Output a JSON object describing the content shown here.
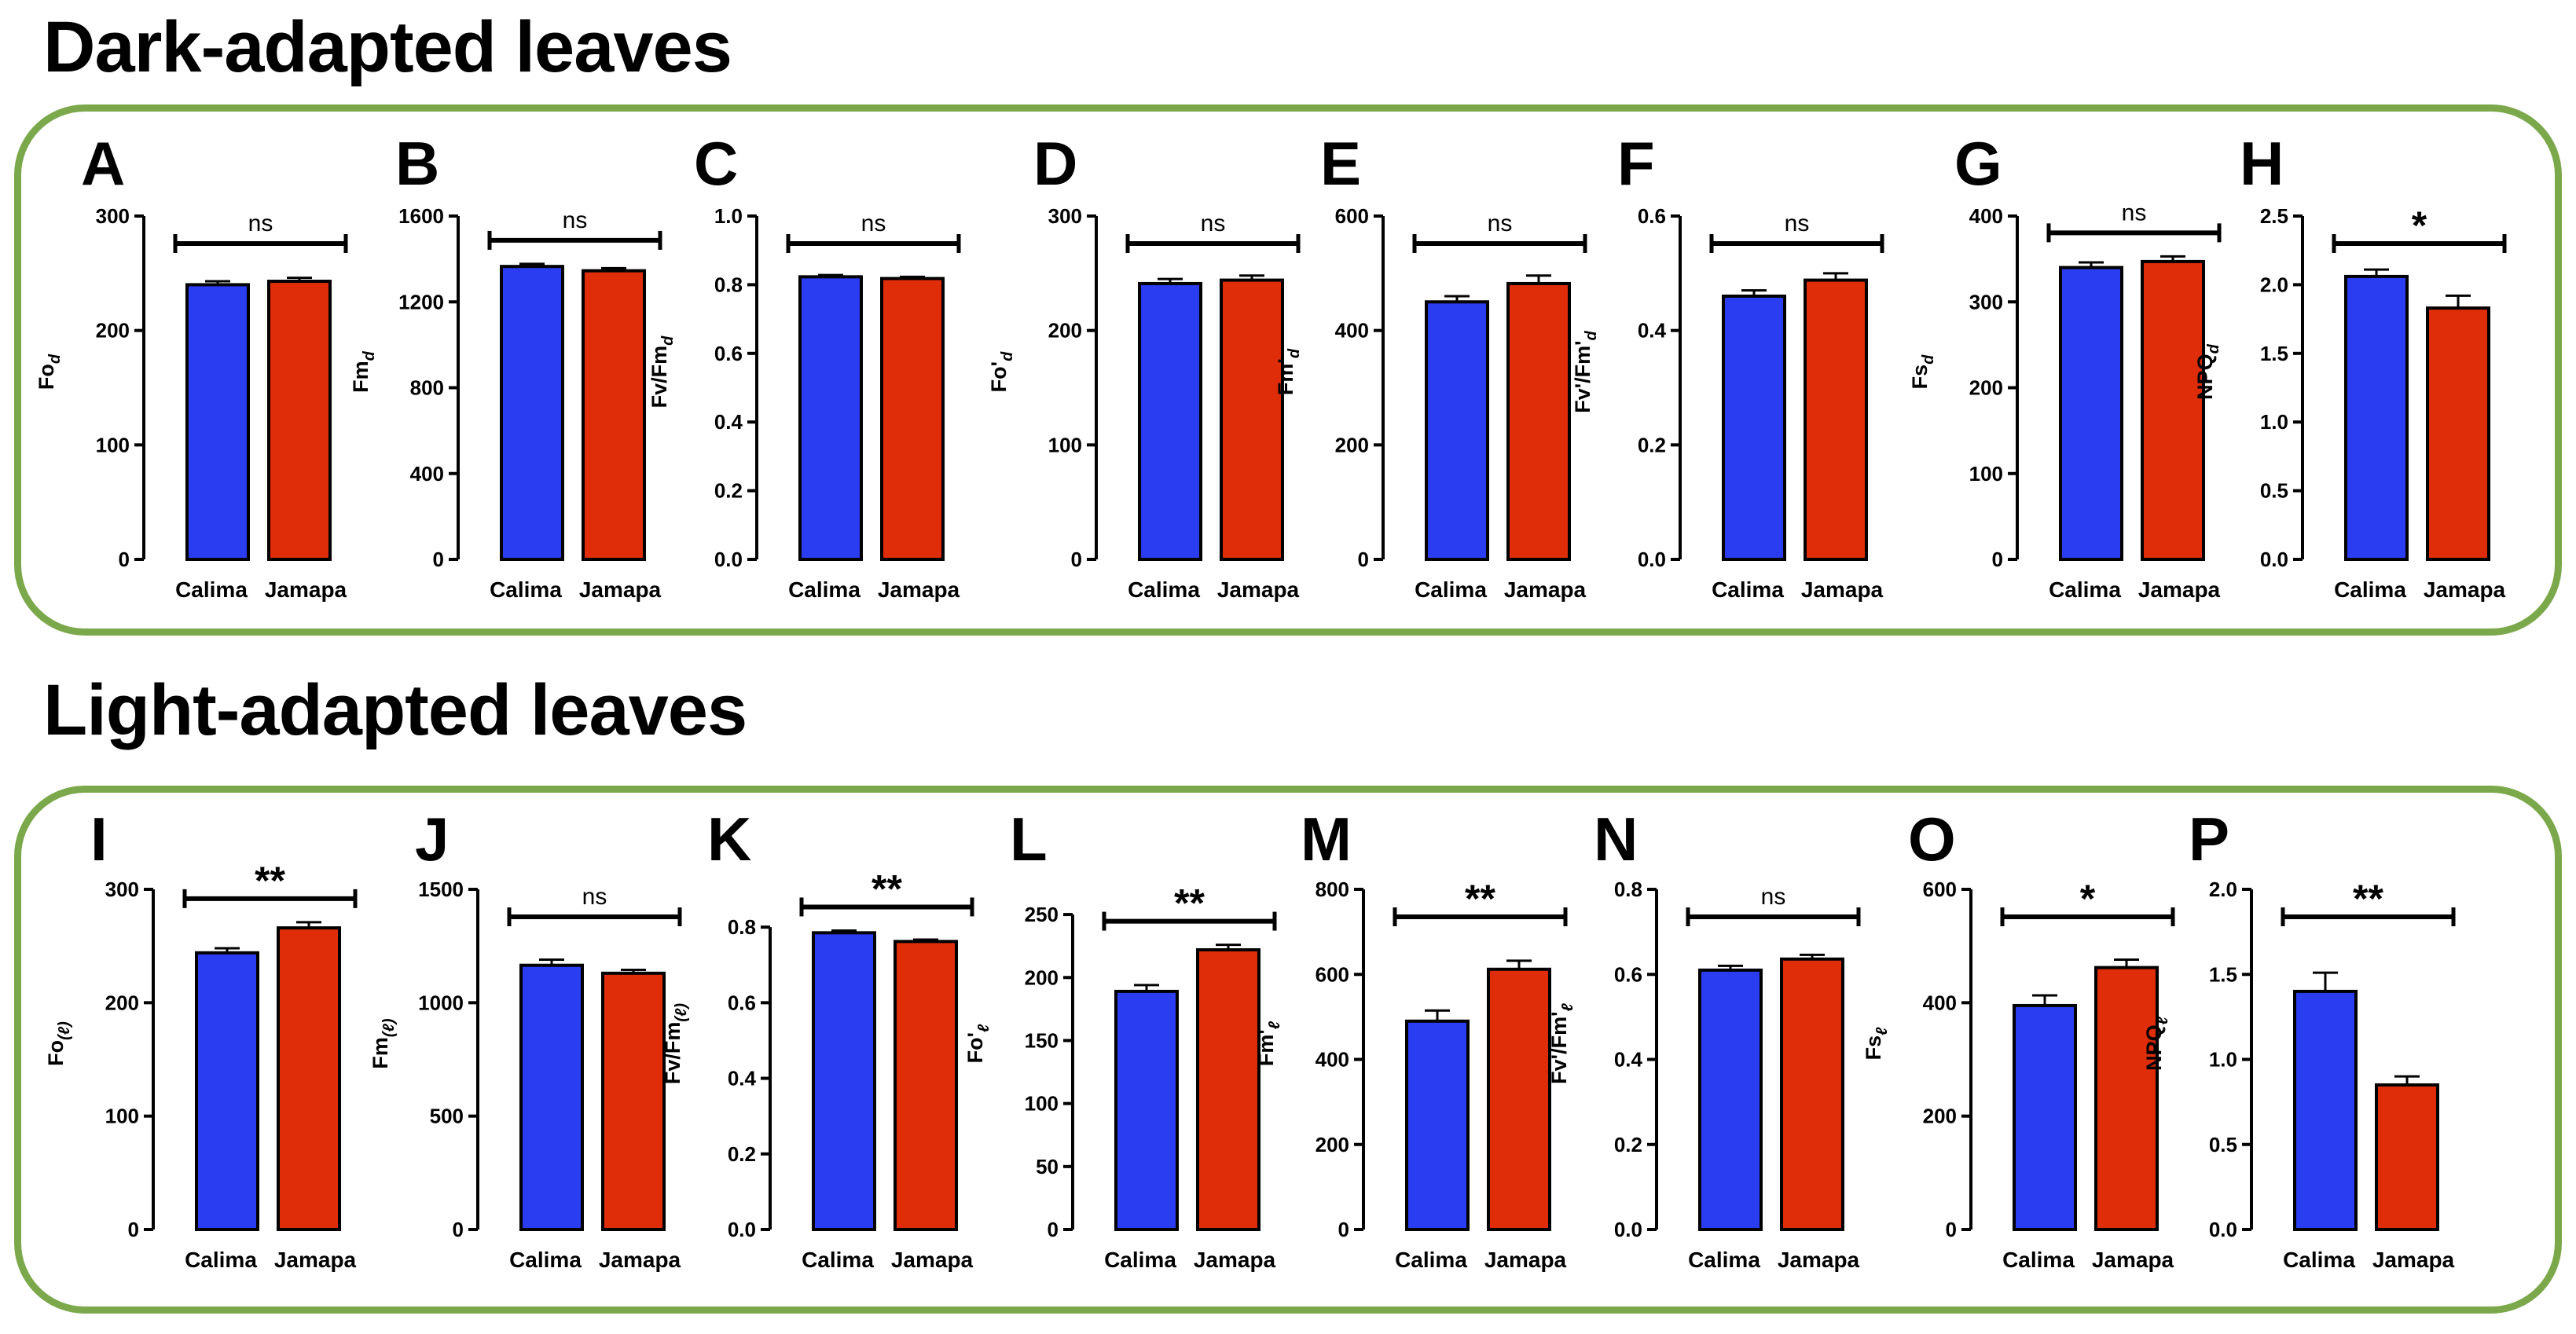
{
  "sections": [
    {
      "title": "Dark-adapted leaves"
    },
    {
      "title": "Light-adapted leaves"
    }
  ],
  "colors": {
    "calima": "#2a3df0",
    "jamapa": "#e02d09",
    "frame": "#7aa84a"
  },
  "chart_data": [
    {
      "type": "bar",
      "panel": "A",
      "title": "",
      "ylabel": "Fo",
      "ylabel_sub": "d",
      "categories": [
        "Calima",
        "Jamapa"
      ],
      "values": [
        240,
        243
      ],
      "errors": [
        3,
        3
      ],
      "ylim": [
        0,
        300
      ],
      "yticks": [
        0,
        100,
        200,
        300
      ],
      "yticklabels": [
        "0",
        "100",
        "200",
        "300"
      ],
      "significance": "ns"
    },
    {
      "type": "bar",
      "panel": "B",
      "title": "",
      "ylabel": "Fm",
      "ylabel_sub": "d",
      "categories": [
        "Calima",
        "Jamapa"
      ],
      "values": [
        1365,
        1345
      ],
      "errors": [
        12,
        12
      ],
      "ylim": [
        0,
        1600
      ],
      "yticks": [
        0,
        400,
        800,
        1200,
        1600
      ],
      "yticklabels": [
        "0",
        "400",
        "800",
        "1200",
        "1600"
      ],
      "significance": "ns"
    },
    {
      "type": "bar",
      "panel": "C",
      "title": "",
      "ylabel": "Fv/Fm",
      "ylabel_sub": "d",
      "categories": [
        "Calima",
        "Jamapa"
      ],
      "values": [
        0.823,
        0.818
      ],
      "errors": [
        0.005,
        0.005
      ],
      "ylim": [
        0,
        1.0
      ],
      "yticks": [
        0,
        0.2,
        0.4,
        0.6,
        0.8,
        1.0
      ],
      "yticklabels": [
        "0.0",
        "0.2",
        "0.4",
        "0.6",
        "0.8",
        "1.0"
      ],
      "significance": "ns"
    },
    {
      "type": "bar",
      "panel": "D",
      "title": "",
      "ylabel": "Fo'",
      "ylabel_sub": "d",
      "categories": [
        "Calima",
        "Jamapa"
      ],
      "values": [
        241,
        244
      ],
      "errors": [
        4,
        4
      ],
      "ylim": [
        0,
        300
      ],
      "yticks": [
        0,
        100,
        200,
        300
      ],
      "yticklabels": [
        "0",
        "100",
        "200",
        "300"
      ],
      "significance": "ns"
    },
    {
      "type": "bar",
      "panel": "E",
      "title": "",
      "ylabel": "Fm'",
      "ylabel_sub": "d",
      "categories": [
        "Calima",
        "Jamapa"
      ],
      "values": [
        450,
        482
      ],
      "errors": [
        10,
        14
      ],
      "ylim": [
        0,
        600
      ],
      "yticks": [
        0,
        200,
        400,
        600
      ],
      "yticklabels": [
        "0",
        "200",
        "400",
        "600"
      ],
      "significance": "ns"
    },
    {
      "type": "bar",
      "panel": "F",
      "title": "",
      "ylabel": "Fv'/Fm'",
      "ylabel_sub": "d",
      "categories": [
        "Calima",
        "Jamapa"
      ],
      "values": [
        0.46,
        0.488
      ],
      "errors": [
        0.01,
        0.012
      ],
      "ylim": [
        0,
        0.6
      ],
      "yticks": [
        0,
        0.2,
        0.4,
        0.6
      ],
      "yticklabels": [
        "0.0",
        "0.2",
        "0.4",
        "0.6"
      ],
      "significance": "ns"
    },
    {
      "type": "bar",
      "panel": "G",
      "title": "",
      "ylabel": "Fs",
      "ylabel_sub": "d",
      "categories": [
        "Calima",
        "Jamapa"
      ],
      "values": [
        340,
        347
      ],
      "errors": [
        6,
        6
      ],
      "ylim": [
        0,
        400
      ],
      "yticks": [
        0,
        100,
        200,
        300,
        400
      ],
      "yticklabels": [
        "0",
        "100",
        "200",
        "300",
        "400"
      ],
      "significance": "ns"
    },
    {
      "type": "bar",
      "panel": "H",
      "title": "",
      "ylabel": "NPQ",
      "ylabel_sub": "d",
      "categories": [
        "Calima",
        "Jamapa"
      ],
      "values": [
        2.06,
        1.83
      ],
      "errors": [
        0.05,
        0.09
      ],
      "ylim": [
        0,
        2.5
      ],
      "yticks": [
        0,
        0.5,
        1.0,
        1.5,
        2.0,
        2.5
      ],
      "yticklabels": [
        "0.0",
        "0.5",
        "1.0",
        "1.5",
        "2.0",
        "2.5"
      ],
      "significance": "*"
    },
    {
      "type": "bar",
      "panel": "I",
      "title": "",
      "ylabel": "Fo",
      "ylabel_sub": "(ℓ)",
      "categories": [
        "Calima",
        "Jamapa"
      ],
      "values": [
        244,
        266
      ],
      "errors": [
        4,
        5
      ],
      "ylim": [
        0,
        300
      ],
      "yticks": [
        0,
        100,
        200,
        300
      ],
      "yticklabels": [
        "0",
        "100",
        "200",
        "300"
      ],
      "significance": "**"
    },
    {
      "type": "bar",
      "panel": "J",
      "title": "",
      "ylabel": "Fm",
      "ylabel_sub": "(ℓ)",
      "categories": [
        "Calima",
        "Jamapa"
      ],
      "values": [
        1165,
        1130
      ],
      "errors": [
        25,
        15
      ],
      "ylim": [
        0,
        1500
      ],
      "yticks": [
        0,
        500,
        1000,
        1500
      ],
      "yticklabels": [
        "0",
        "500",
        "1000",
        "1500"
      ],
      "significance": "ns"
    },
    {
      "type": "bar",
      "panel": "K",
      "title": "",
      "ylabel": "Fv/Fm",
      "ylabel_sub": "(ℓ)",
      "categories": [
        "Calima",
        "Jamapa"
      ],
      "values": [
        0.785,
        0.762
      ],
      "errors": [
        0.006,
        0.005
      ],
      "ylim": [
        0,
        0.9
      ],
      "yticks": [
        0,
        0.2,
        0.4,
        0.6,
        0.8
      ],
      "yticklabels": [
        "0.0",
        "0.2",
        "0.4",
        "0.6",
        "0.8"
      ],
      "significance": "**"
    },
    {
      "type": "bar",
      "panel": "L",
      "title": "",
      "ylabel": "Fo'",
      "ylabel_sub": "ℓ",
      "categories": [
        "Calima",
        "Jamapa"
      ],
      "values": [
        189,
        222
      ],
      "errors": [
        5,
        4
      ],
      "ylim": [
        0,
        270
      ],
      "yticks": [
        0,
        50,
        100,
        150,
        200,
        250
      ],
      "yticklabels": [
        "0",
        "50",
        "100",
        "150",
        "200",
        "250"
      ],
      "significance": "**"
    },
    {
      "type": "bar",
      "panel": "M",
      "title": "",
      "ylabel": "Fm'",
      "ylabel_sub": "ℓ",
      "categories": [
        "Calima",
        "Jamapa"
      ],
      "values": [
        490,
        612
      ],
      "errors": [
        25,
        20
      ],
      "ylim": [
        0,
        800
      ],
      "yticks": [
        0,
        200,
        400,
        600,
        800
      ],
      "yticklabels": [
        "0",
        "200",
        "400",
        "600",
        "800"
      ],
      "significance": "**"
    },
    {
      "type": "bar",
      "panel": "N",
      "title": "",
      "ylabel": "Fv'/Fm'",
      "ylabel_sub": "ℓ",
      "categories": [
        "Calima",
        "Jamapa"
      ],
      "values": [
        0.61,
        0.636
      ],
      "errors": [
        0.01,
        0.01
      ],
      "ylim": [
        0,
        0.8
      ],
      "yticks": [
        0,
        0.2,
        0.4,
        0.6,
        0.8
      ],
      "yticklabels": [
        "0.0",
        "0.2",
        "0.4",
        "0.6",
        "0.8"
      ],
      "significance": "ns"
    },
    {
      "type": "bar",
      "panel": "O",
      "title": "",
      "ylabel": "Fs",
      "ylabel_sub": "ℓ",
      "categories": [
        "Calima",
        "Jamapa"
      ],
      "values": [
        395,
        462
      ],
      "errors": [
        18,
        14
      ],
      "ylim": [
        0,
        600
      ],
      "yticks": [
        0,
        200,
        400,
        600
      ],
      "yticklabels": [
        "0",
        "200",
        "400",
        "600"
      ],
      "significance": "*"
    },
    {
      "type": "bar",
      "panel": "P",
      "title": "",
      "ylabel": "NPQ",
      "ylabel_sub": "ℓ",
      "categories": [
        "Calima",
        "Jamapa"
      ],
      "values": [
        1.4,
        0.85
      ],
      "errors": [
        0.11,
        0.05
      ],
      "ylim": [
        0,
        2.0
      ],
      "yticks": [
        0,
        0.5,
        1.0,
        1.5,
        2.0
      ],
      "yticklabels": [
        "0.0",
        "0.5",
        "1.0",
        "1.5",
        "2.0"
      ],
      "significance": "**"
    }
  ]
}
